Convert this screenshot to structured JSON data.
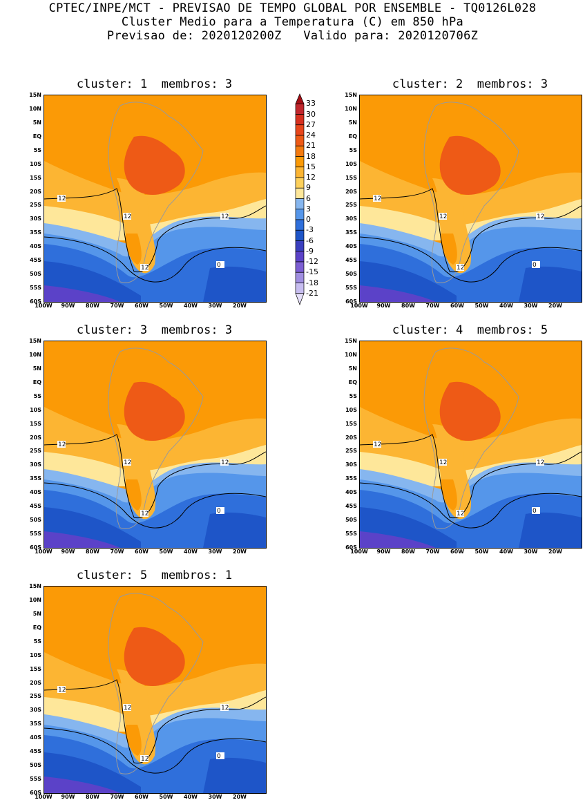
{
  "header": {
    "line1": "CPTEC/INPE/MCT - PREVISAO DE TEMPO GLOBAL POR ENSEMBLE - TQ0126L028",
    "line2": "Cluster Medio para a Temperatura (C) em 850 hPa",
    "line3": "Previsao de: 2020120200Z   Valido para: 2020120706Z"
  },
  "panels": [
    {
      "title": "cluster: 1  membros: 3"
    },
    {
      "title": "cluster: 2  membros: 3"
    },
    {
      "title": "cluster: 3  membros: 3"
    },
    {
      "title": "cluster: 4  membros: 5"
    },
    {
      "title": "cluster: 5  membros: 1"
    }
  ],
  "lat_labels": [
    "15N",
    "10N",
    "5N",
    "EQ",
    "5S",
    "10S",
    "15S",
    "20S",
    "25S",
    "30S",
    "35S",
    "40S",
    "45S",
    "50S",
    "55S",
    "60S"
  ],
  "lon_labels": [
    "100W",
    "90W",
    "80W",
    "70W",
    "60W",
    "50W",
    "40W",
    "30W",
    "20W"
  ],
  "contour_labels": [
    "12",
    "0"
  ],
  "colorbar": {
    "levels": [
      "33",
      "30",
      "27",
      "24",
      "21",
      "18",
      "15",
      "12",
      "9",
      "6",
      "3",
      "0",
      "-3",
      "-6",
      "-9",
      "-12",
      "-15",
      "-18",
      "-21"
    ],
    "colors": [
      "#a50f15",
      "#c1272d",
      "#d7301f",
      "#e8461b",
      "#ee5a16",
      "#f47a0f",
      "#fb9a06",
      "#fcb533",
      "#fdd05b",
      "#fee79a",
      "#86b6ef",
      "#5596ea",
      "#2f6fdb",
      "#1e55c8",
      "#3a3fbf",
      "#5b42c8",
      "#7c5ed3",
      "#a08ee0",
      "#c7bdf0",
      "#e6e0fa"
    ]
  },
  "colors": {
    "orange": "#fb9a06",
    "light_orange": "#fcb533",
    "yellow": "#fee79a",
    "red_orange": "#ee5a16",
    "light_blue": "#86b6ef",
    "mid_blue": "#5596ea",
    "blue": "#2f6fdb",
    "dark_blue": "#1e55c8",
    "purple": "#5b42c8"
  }
}
